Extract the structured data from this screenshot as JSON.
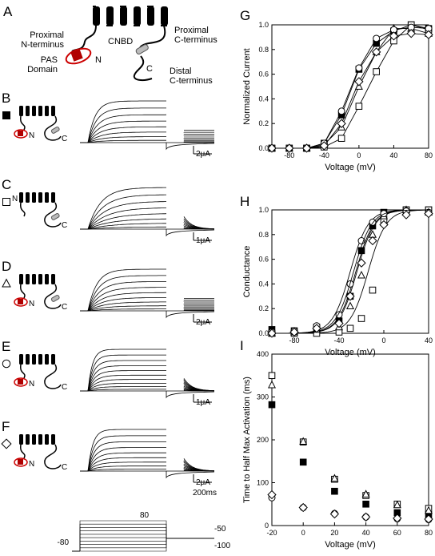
{
  "panels": {
    "A": {
      "letter": "A",
      "labels": {
        "proximal_n": "Proximal\nN-terminus",
        "proximal_c": "Proximal\nC-terminus",
        "cnbd": "CNBD",
        "pas": "PAS\nDomain",
        "n": "N",
        "c": "C",
        "distal_c": "Distal\nC-terminus"
      }
    },
    "constructs": [
      {
        "letter": "B",
        "marker": "filled-square",
        "scale": "2μA",
        "has_pas": true,
        "has_cnbd": true,
        "has_proxn": true
      },
      {
        "letter": "C",
        "marker": "open-square",
        "scale": "1μA",
        "has_pas": false,
        "has_cnbd": true,
        "has_proxn": false
      },
      {
        "letter": "D",
        "marker": "open-triangle",
        "scale": "2μA",
        "has_pas": true,
        "has_cnbd": true,
        "has_proxn": false
      },
      {
        "letter": "E",
        "marker": "open-circle",
        "scale": "1μA",
        "has_pas": true,
        "has_cnbd": false,
        "has_proxn": true
      },
      {
        "letter": "F",
        "marker": "open-diamond",
        "scale": "2μA",
        "has_pas": true,
        "has_cnbd": false,
        "has_proxn": false
      }
    ],
    "time_scale": "200ms",
    "protocol": {
      "v_start": "-80",
      "v_top": "80",
      "v_tail_top": "-50",
      "v_tail_bottom": "-100"
    }
  },
  "chart_data": [
    {
      "panel": "G",
      "type": "line",
      "xlabel": "Voltage (mV)",
      "ylabel": "Normalized Current",
      "xlim": [
        -100,
        80
      ],
      "ylim": [
        0,
        1.0
      ],
      "xticks": [
        -80,
        -40,
        0,
        40,
        80
      ],
      "yticks": [
        0.0,
        0.2,
        0.4,
        0.6,
        0.8,
        1.0
      ],
      "x": [
        -100,
        -80,
        -60,
        -40,
        -20,
        0,
        20,
        40,
        60,
        80
      ],
      "series": [
        {
          "marker": "filled-square",
          "values": [
            0,
            0,
            0,
            0.04,
            0.27,
            0.64,
            0.85,
            0.95,
            1.0,
            0.97
          ]
        },
        {
          "marker": "open-square",
          "values": [
            0,
            0,
            0,
            0.01,
            0.08,
            0.34,
            0.62,
            0.87,
            1.0,
            0.96
          ]
        },
        {
          "marker": "open-triangle",
          "values": [
            0,
            0,
            0,
            0.03,
            0.17,
            0.5,
            0.78,
            0.97,
            0.97,
            0.93
          ]
        },
        {
          "marker": "open-circle",
          "values": [
            0,
            0,
            0,
            0.04,
            0.3,
            0.65,
            0.89,
            0.96,
            0.98,
            0.97
          ]
        },
        {
          "marker": "open-diamond",
          "values": [
            0,
            0,
            0,
            0.02,
            0.2,
            0.54,
            0.78,
            0.91,
            0.93,
            0.92
          ]
        }
      ]
    },
    {
      "panel": "H",
      "type": "scatter",
      "xlabel": "Voltage (mV)",
      "ylabel": "Conductance",
      "xlim": [
        -100,
        40
      ],
      "ylim": [
        0,
        1.0
      ],
      "xticks": [
        -80,
        -40,
        0,
        40
      ],
      "yticks": [
        0.0,
        0.2,
        0.4,
        0.6,
        0.8,
        1.0
      ],
      "x": [
        -100,
        -80,
        -60,
        -40,
        -30,
        -20,
        -10,
        0,
        20,
        40
      ],
      "series": [
        {
          "marker": "filled-square",
          "values": [
            0.03,
            0.02,
            0.05,
            0.1,
            0.3,
            0.67,
            0.87,
            0.98,
            1.0,
            1.0
          ]
        },
        {
          "marker": "open-square",
          "values": [
            0,
            0,
            0,
            0.01,
            0.04,
            0.12,
            0.35,
            0.92,
            1.0,
            1.0
          ]
        },
        {
          "marker": "open-triangle",
          "values": [
            0,
            0.01,
            0.03,
            0.05,
            0.22,
            0.47,
            0.8,
            0.95,
            1.0,
            0.98
          ]
        },
        {
          "marker": "open-circle",
          "values": [
            0.01,
            0.02,
            0.06,
            0.15,
            0.4,
            0.75,
            0.9,
            0.97,
            0.99,
            0.98
          ]
        },
        {
          "marker": "open-diamond",
          "values": [
            0,
            0.01,
            0.04,
            0.08,
            0.3,
            0.57,
            0.75,
            0.88,
            0.96,
            0.97
          ]
        }
      ],
      "fit_v_half": [
        -25,
        -14,
        -24,
        -30,
        -27
      ]
    },
    {
      "panel": "I",
      "type": "scatter",
      "xlabel": "Voltage (mV)",
      "ylabel": "Time to Half Max Activation (ms)",
      "xlim": [
        -20,
        80
      ],
      "ylim": [
        0,
        400
      ],
      "xticks": [
        -20,
        0,
        20,
        40,
        60,
        80
      ],
      "yticks": [
        0,
        100,
        200,
        300,
        400
      ],
      "x": [
        -20,
        0,
        20,
        40,
        60,
        80
      ],
      "series": [
        {
          "marker": "filled-square",
          "values": [
            282,
            148,
            80,
            50,
            30,
            25
          ]
        },
        {
          "marker": "open-square",
          "values": [
            350,
            195,
            108,
            70,
            50,
            40
          ]
        },
        {
          "marker": "open-triangle",
          "values": [
            328,
            196,
            110,
            73,
            48,
            35
          ]
        },
        {
          "marker": "open-circle",
          "values": [
            65,
            42,
            28,
            20,
            16,
            14
          ]
        },
        {
          "marker": "open-diamond",
          "values": [
            72,
            42,
            27,
            20,
            17,
            15
          ]
        }
      ]
    }
  ]
}
